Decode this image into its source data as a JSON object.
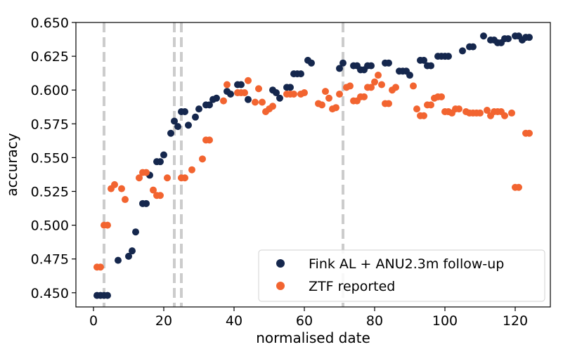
{
  "chart_data": {
    "type": "scatter",
    "title": "",
    "xlabel": "normalised date",
    "ylabel": "accuracy",
    "xlim": [
      -5,
      130
    ],
    "ylim": [
      0.4395,
      0.65
    ],
    "xticks": [
      0,
      20,
      40,
      60,
      80,
      100,
      120
    ],
    "yticks": [
      0.45,
      0.475,
      0.5,
      0.525,
      0.55,
      0.575,
      0.6,
      0.625,
      0.65
    ],
    "ytick_labels": [
      "0.450",
      "0.475",
      "0.500",
      "0.525",
      "0.550",
      "0.575",
      "0.600",
      "0.625",
      "0.650"
    ],
    "xtick_labels": [
      "0",
      "20",
      "40",
      "60",
      "80",
      "100",
      "120"
    ],
    "vlines": [
      3,
      23,
      25,
      71
    ],
    "vline_color": "#cccccc",
    "legend_position": "lower-right",
    "series": [
      {
        "name": "Fink AL + ANU2.3m follow-up",
        "color": "#15274d",
        "points": [
          [
            1,
            0.448
          ],
          [
            2,
            0.448
          ],
          [
            3,
            0.448
          ],
          [
            4,
            0.448
          ],
          [
            7,
            0.474
          ],
          [
            10,
            0.477
          ],
          [
            11,
            0.481
          ],
          [
            12,
            0.495
          ],
          [
            14,
            0.516
          ],
          [
            15,
            0.516
          ],
          [
            16,
            0.537
          ],
          [
            18,
            0.547
          ],
          [
            19,
            0.547
          ],
          [
            20,
            0.552
          ],
          [
            22,
            0.568
          ],
          [
            23,
            0.577
          ],
          [
            24,
            0.573
          ],
          [
            25,
            0.584
          ],
          [
            26,
            0.584
          ],
          [
            27,
            0.574
          ],
          [
            29,
            0.58
          ],
          [
            30,
            0.586
          ],
          [
            32,
            0.589
          ],
          [
            33,
            0.589
          ],
          [
            34,
            0.593
          ],
          [
            35,
            0.594
          ],
          [
            38,
            0.599
          ],
          [
            39,
            0.597
          ],
          [
            41,
            0.604
          ],
          [
            42,
            0.604
          ],
          [
            44,
            0.593
          ],
          [
            51,
            0.6
          ],
          [
            52,
            0.598
          ],
          [
            53,
            0.594
          ],
          [
            55,
            0.602
          ],
          [
            56,
            0.602
          ],
          [
            57,
            0.612
          ],
          [
            58,
            0.612
          ],
          [
            59,
            0.612
          ],
          [
            61,
            0.622
          ],
          [
            62,
            0.62
          ],
          [
            70,
            0.616
          ],
          [
            71,
            0.62
          ],
          [
            74,
            0.618
          ],
          [
            75,
            0.618
          ],
          [
            76,
            0.615
          ],
          [
            77,
            0.615
          ],
          [
            78,
            0.618
          ],
          [
            79,
            0.618
          ],
          [
            83,
            0.62
          ],
          [
            84,
            0.62
          ],
          [
            87,
            0.614
          ],
          [
            88,
            0.614
          ],
          [
            89,
            0.614
          ],
          [
            90,
            0.611
          ],
          [
            93,
            0.622
          ],
          [
            94,
            0.622
          ],
          [
            95,
            0.618
          ],
          [
            96,
            0.618
          ],
          [
            98,
            0.625
          ],
          [
            99,
            0.625
          ],
          [
            100,
            0.625
          ],
          [
            101,
            0.625
          ],
          [
            105,
            0.629
          ],
          [
            107,
            0.632
          ],
          [
            108,
            0.632
          ],
          [
            111,
            0.64
          ],
          [
            113,
            0.637
          ],
          [
            114,
            0.637
          ],
          [
            115,
            0.635
          ],
          [
            116,
            0.635
          ],
          [
            117,
            0.638
          ],
          [
            118,
            0.638
          ],
          [
            120,
            0.64
          ],
          [
            121,
            0.64
          ],
          [
            122,
            0.637
          ],
          [
            123,
            0.639
          ],
          [
            124,
            0.639
          ]
        ]
      },
      {
        "name": "ZTF reported",
        "color": "#f26430",
        "points": [
          [
            1,
            0.469
          ],
          [
            2,
            0.469
          ],
          [
            3,
            0.5
          ],
          [
            4,
            0.5
          ],
          [
            5,
            0.527
          ],
          [
            6,
            0.53
          ],
          [
            8,
            0.527
          ],
          [
            9,
            0.519
          ],
          [
            13,
            0.535
          ],
          [
            14,
            0.539
          ],
          [
            15,
            0.539
          ],
          [
            17,
            0.526
          ],
          [
            18,
            0.522
          ],
          [
            19,
            0.522
          ],
          [
            21,
            0.535
          ],
          [
            25,
            0.535
          ],
          [
            26,
            0.535
          ],
          [
            28,
            0.541
          ],
          [
            31,
            0.549
          ],
          [
            32,
            0.563
          ],
          [
            33,
            0.563
          ],
          [
            37,
            0.592
          ],
          [
            38,
            0.604
          ],
          [
            41,
            0.598
          ],
          [
            42,
            0.598
          ],
          [
            43,
            0.598
          ],
          [
            44,
            0.607
          ],
          [
            46,
            0.591
          ],
          [
            47,
            0.601
          ],
          [
            48,
            0.591
          ],
          [
            49,
            0.584
          ],
          [
            50,
            0.586
          ],
          [
            51,
            0.588
          ],
          [
            55,
            0.597
          ],
          [
            56,
            0.597
          ],
          [
            57,
            0.597
          ],
          [
            59,
            0.597
          ],
          [
            60,
            0.598
          ],
          [
            64,
            0.59
          ],
          [
            65,
            0.589
          ],
          [
            66,
            0.599
          ],
          [
            67,
            0.594
          ],
          [
            68,
            0.586
          ],
          [
            69,
            0.587
          ],
          [
            70,
            0.597
          ],
          [
            72,
            0.602
          ],
          [
            73,
            0.603
          ],
          [
            74,
            0.592
          ],
          [
            75,
            0.592
          ],
          [
            76,
            0.595
          ],
          [
            77,
            0.595
          ],
          [
            78,
            0.602
          ],
          [
            79,
            0.602
          ],
          [
            80,
            0.606
          ],
          [
            81,
            0.611
          ],
          [
            82,
            0.604
          ],
          [
            83,
            0.59
          ],
          [
            84,
            0.59
          ],
          [
            85,
            0.6
          ],
          [
            86,
            0.602
          ],
          [
            91,
            0.603
          ],
          [
            92,
            0.586
          ],
          [
            93,
            0.581
          ],
          [
            94,
            0.581
          ],
          [
            95,
            0.589
          ],
          [
            96,
            0.589
          ],
          [
            97,
            0.594
          ],
          [
            98,
            0.595
          ],
          [
            99,
            0.595
          ],
          [
            100,
            0.584
          ],
          [
            101,
            0.584
          ],
          [
            102,
            0.583
          ],
          [
            103,
            0.586
          ],
          [
            104,
            0.586
          ],
          [
            106,
            0.584
          ],
          [
            107,
            0.583
          ],
          [
            108,
            0.583
          ],
          [
            109,
            0.583
          ],
          [
            110,
            0.583
          ],
          [
            112,
            0.585
          ],
          [
            113,
            0.581
          ],
          [
            114,
            0.584
          ],
          [
            115,
            0.584
          ],
          [
            116,
            0.584
          ],
          [
            117,
            0.581
          ],
          [
            119,
            0.583
          ],
          [
            120,
            0.528
          ],
          [
            121,
            0.528
          ],
          [
            123,
            0.568
          ],
          [
            124,
            0.568
          ]
        ]
      }
    ]
  }
}
